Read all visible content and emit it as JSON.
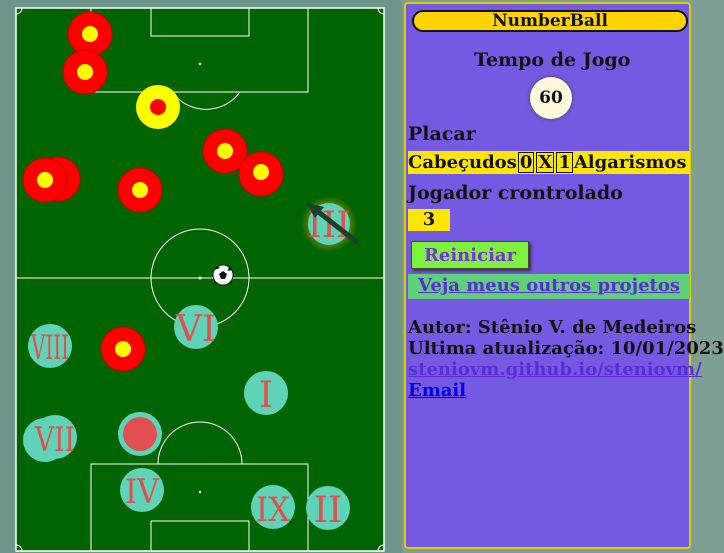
{
  "app": {
    "title": "NumberBall"
  },
  "panel": {
    "time_label": "Tempo de Jogo",
    "time_value": "60",
    "score_label": "Placar",
    "score": {
      "home_name": "Cabeçudos",
      "home_score": "0",
      "separator": "X",
      "away_score": "1",
      "away_name": "Algarismos"
    },
    "player_label": "Jogador crontrolado",
    "player_value": "3",
    "restart_label": "Reiniciar",
    "projects_label": "Veja meus outros projetos",
    "author": "Autor: Stênio V. de Medeiros",
    "updated": "Ultima atualização: 10/01/2023",
    "site_link": "steniovm.github.io/steniovm/",
    "email_link": "Email"
  },
  "field": {
    "colors": {
      "grass": "#006400",
      "lines": "#ffffff",
      "team_head_outer": "#ff0000",
      "team_head_inner": "#ffff00",
      "team_numbers_fill": "#5fd3b8",
      "team_numbers_text": "#e05050",
      "highlight": "#ffd400"
    },
    "numeral_players": [
      "III",
      "VI",
      "VIII",
      "I",
      "VII",
      "IV",
      "IX",
      "II"
    ],
    "ball_icon": "soccer-ball-icon"
  }
}
